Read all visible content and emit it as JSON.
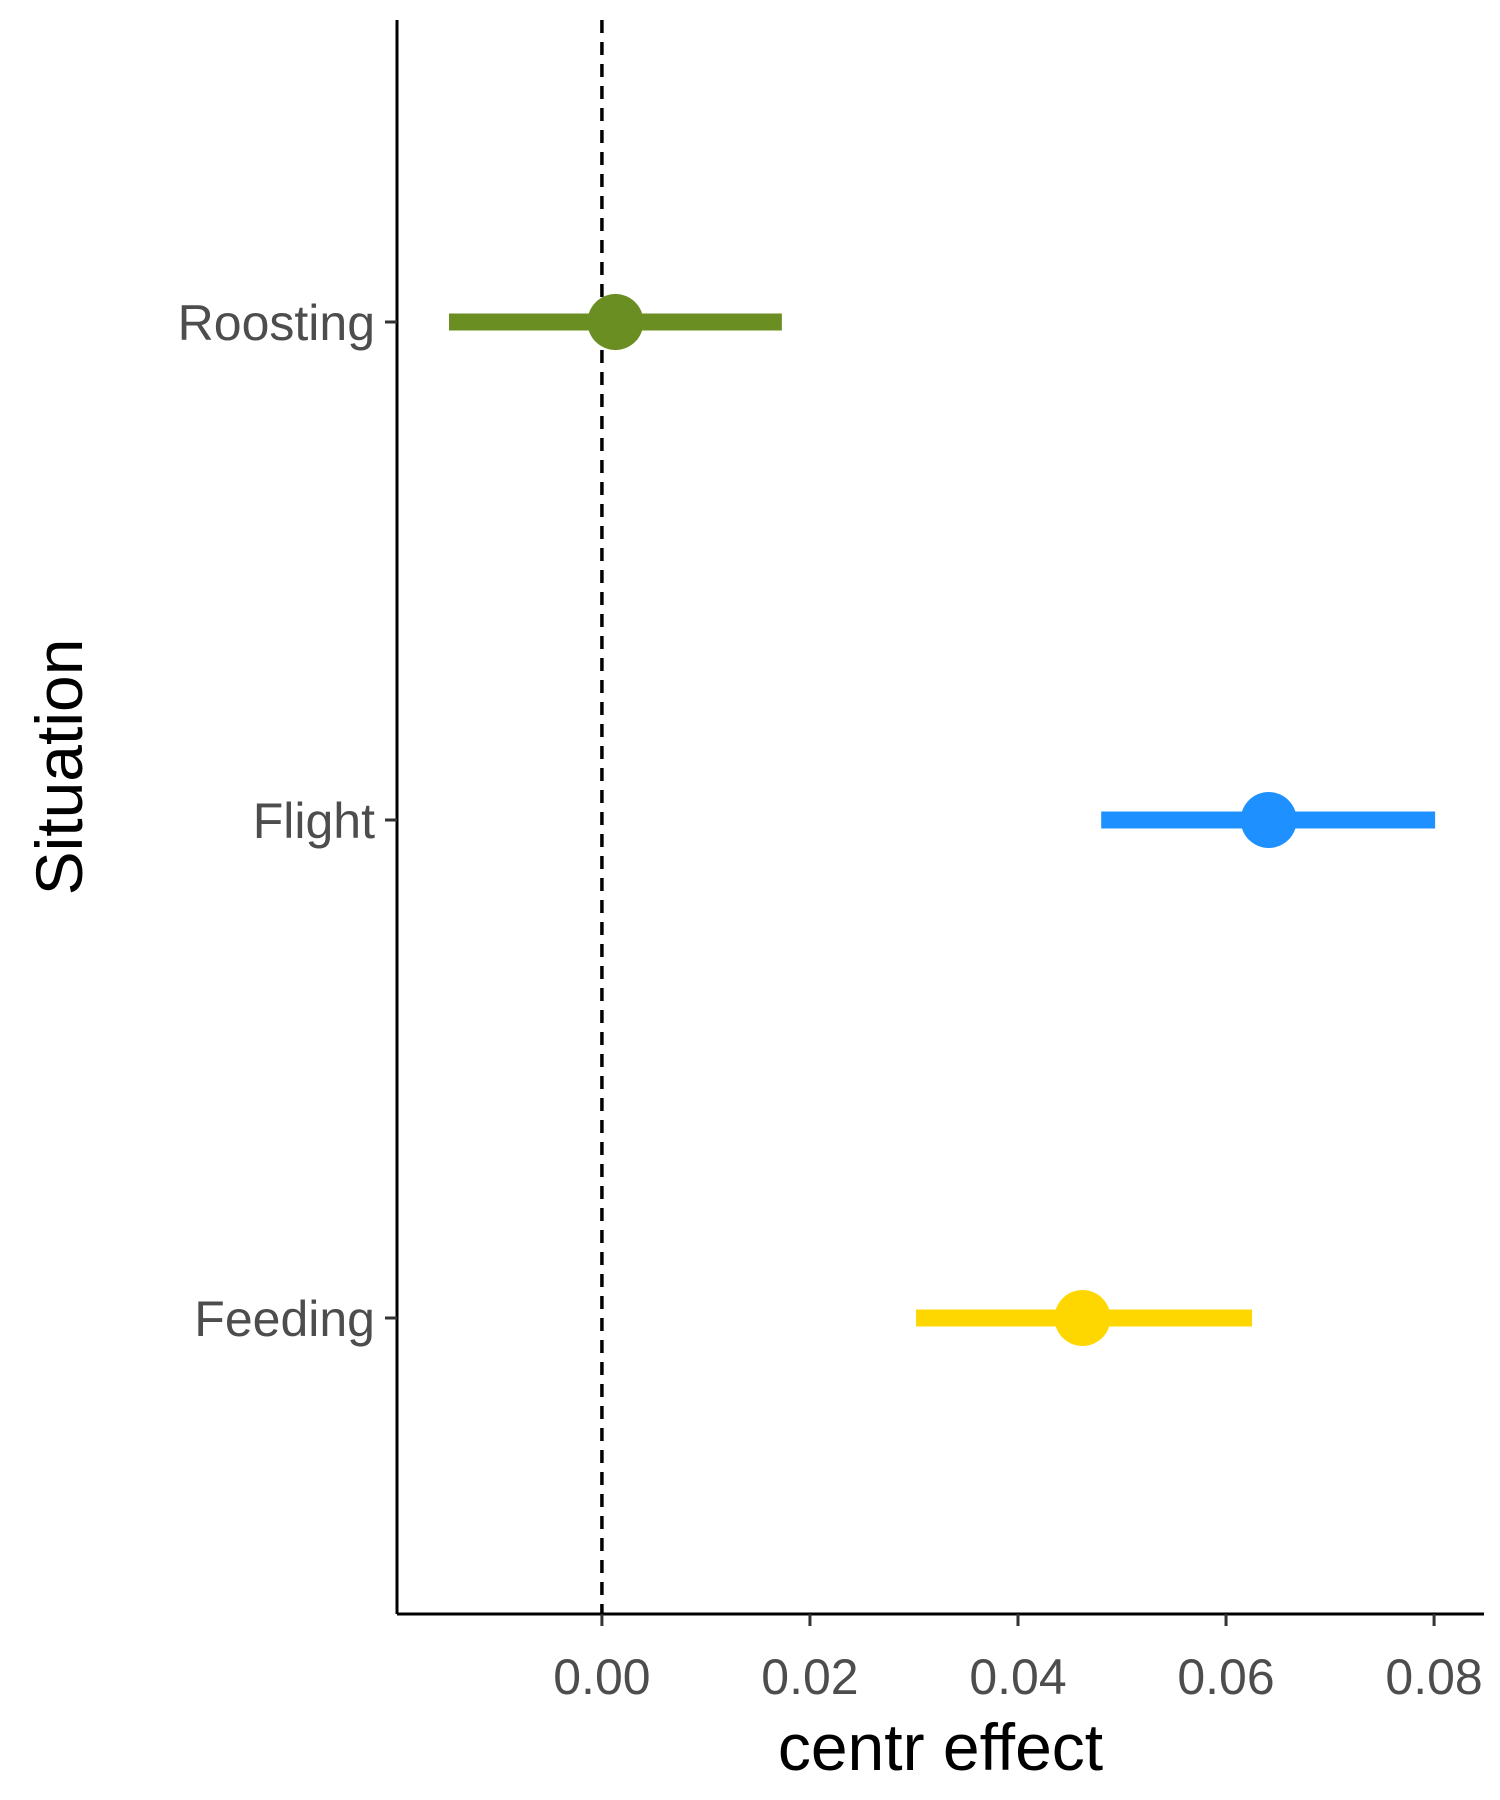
{
  "chart_data": {
    "type": "forest",
    "title": "",
    "xlabel": "centr effect",
    "ylabel": "Situation",
    "xlim": [
      -0.0197,
      0.0848
    ],
    "xticks": [
      0.0,
      0.02,
      0.04,
      0.06,
      0.08
    ],
    "xtick_labels": [
      "0.00",
      "0.02",
      "0.04",
      "0.06",
      "0.08"
    ],
    "reference_line": {
      "x": 0,
      "style": "dashed"
    },
    "categories": [
      "Roosting",
      "Flight",
      "Feeding"
    ],
    "points": [
      {
        "label": "Roosting",
        "estimate": 0.0013,
        "lower": -0.0147,
        "upper": 0.0173,
        "color": "#6b8e23"
      },
      {
        "label": "Flight",
        "estimate": 0.0641,
        "lower": 0.048,
        "upper": 0.0801,
        "color": "#1e90ff"
      },
      {
        "label": "Feeding",
        "estimate": 0.0462,
        "lower": 0.0302,
        "upper": 0.0625,
        "color": "#ffd700"
      }
    ],
    "grid": false,
    "legend": "none"
  }
}
